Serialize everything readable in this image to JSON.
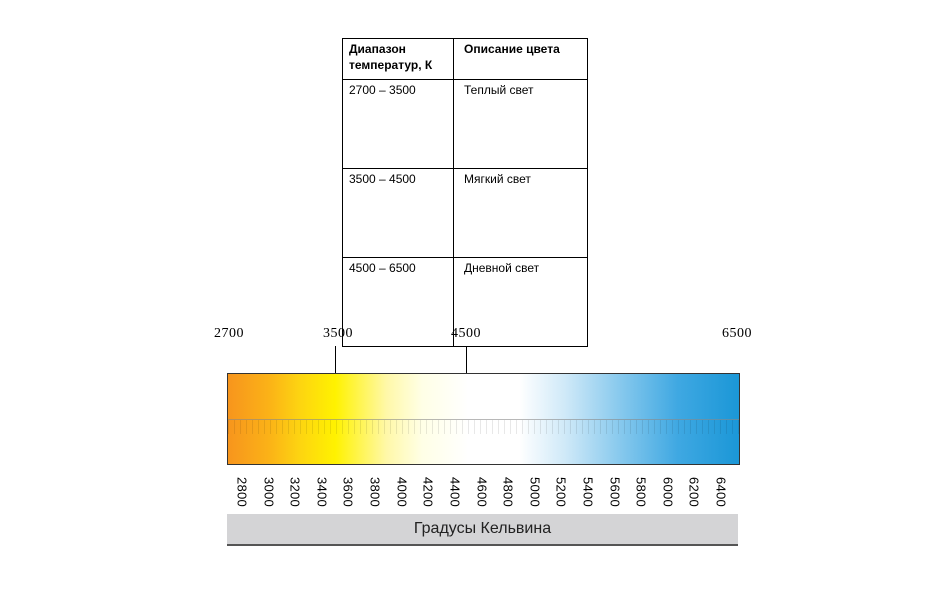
{
  "table": {
    "headers": [
      "Диапазон температур, К",
      "Описание цвета"
    ],
    "rows": [
      {
        "range": "2700 – 3500",
        "description": "Теплый  свет"
      },
      {
        "range": "3500 – 4500",
        "description": "Мягкий свет"
      },
      {
        "range": "4500  – 6500",
        "description": "Дневной свет"
      }
    ]
  },
  "scale": {
    "markers": [
      "2700",
      "3500",
      "4500",
      "6500"
    ],
    "range_min": 2700,
    "range_max": 6500,
    "ticks": [
      "2800",
      "3000",
      "3200",
      "3400",
      "3600",
      "3800",
      "4000",
      "4200",
      "4400",
      "4600",
      "4800",
      "5000",
      "5200",
      "5400",
      "5600",
      "5800",
      "6000",
      "6200",
      "6400"
    ],
    "caption": "Градусы Кельвина",
    "colors": {
      "warm": "#f7951d",
      "yellow": "#fff200",
      "neutral": "#ffffff",
      "cool": "#1b97d7",
      "band": "#d4d4d6"
    }
  }
}
